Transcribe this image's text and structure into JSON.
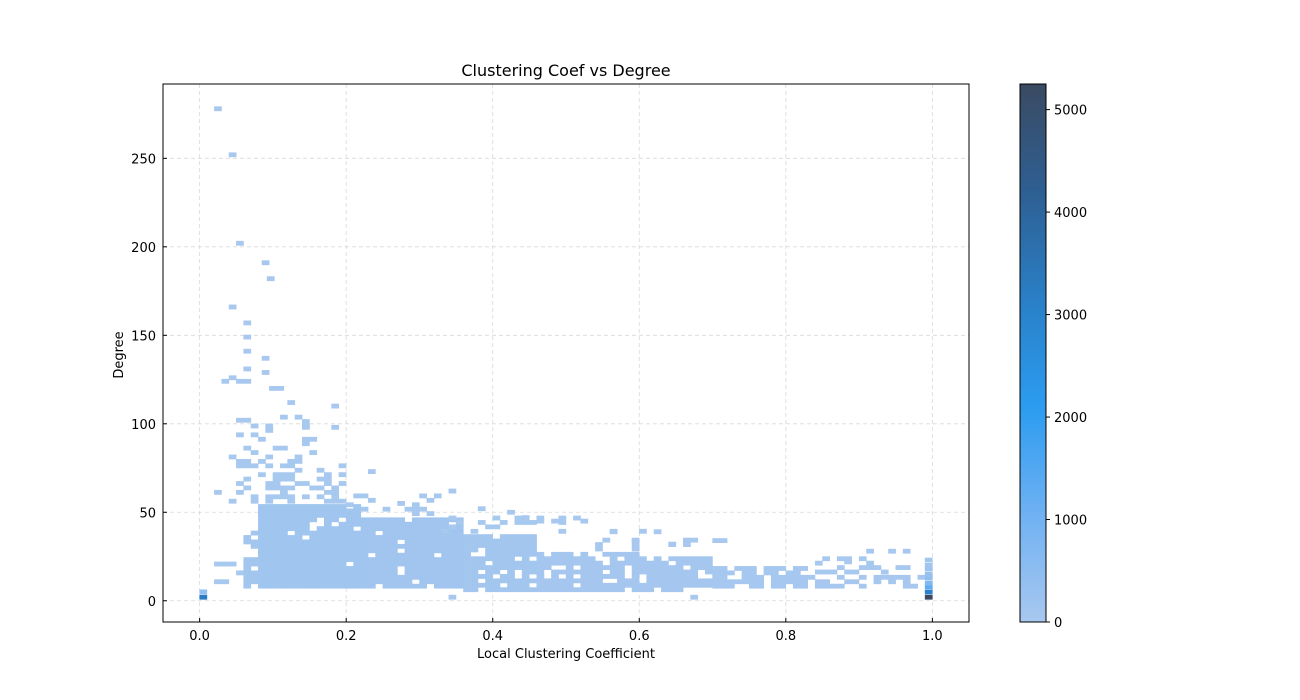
{
  "chart_data": {
    "type": "heatmap",
    "title": "Clustering Coef vs Degree",
    "xlabel": "Local Clustering Coefficient",
    "ylabel": "Degree",
    "xlim": [
      -0.05,
      1.05
    ],
    "ylim": [
      -12,
      292
    ],
    "x_ticks": [
      0.0,
      0.2,
      0.4,
      0.6,
      0.8,
      1.0
    ],
    "x_tick_labels": [
      "0.0",
      "0.2",
      "0.4",
      "0.6",
      "0.8",
      "1.0"
    ],
    "y_ticks": [
      0,
      50,
      100,
      150,
      200,
      250
    ],
    "y_tick_labels": [
      "0",
      "50",
      "100",
      "150",
      "200",
      "250"
    ],
    "grid": true,
    "colorbar": {
      "range": [
        0,
        5250
      ],
      "ticks": [
        0,
        1000,
        2000,
        3000,
        4000,
        5000
      ],
      "tick_labels": [
        "0",
        "1000",
        "2000",
        "3000",
        "4000",
        "5000"
      ],
      "colors": [
        "#a8c8ef",
        "#6fb1f2",
        "#2b9cf0",
        "#2a7fc6",
        "#2e5f92",
        "#3a4a62"
      ]
    },
    "bin_width_x": 0.01,
    "bin_height_y": 2.5,
    "regions": [
      {
        "x": [
          0.08,
          0.22
        ],
        "y": [
          7,
          55
        ],
        "value": 150,
        "coverage": 0.95
      },
      {
        "x": [
          0.06,
          0.08
        ],
        "y": [
          7,
          40
        ],
        "value": 100,
        "coverage": 0.75
      },
      {
        "x": [
          0.22,
          0.36
        ],
        "y": [
          7,
          48
        ],
        "value": 130,
        "coverage": 0.92
      },
      {
        "x": [
          0.36,
          0.46
        ],
        "y": [
          5,
          38
        ],
        "value": 90,
        "coverage": 0.85
      },
      {
        "x": [
          0.46,
          0.6
        ],
        "y": [
          5,
          28
        ],
        "value": 70,
        "coverage": 0.82
      },
      {
        "x": [
          0.6,
          0.7
        ],
        "y": [
          5,
          24
        ],
        "value": 50,
        "coverage": 0.78
      },
      {
        "x": [
          0.7,
          0.83
        ],
        "y": [
          7,
          20
        ],
        "value": 40,
        "coverage": 0.72
      },
      {
        "x": [
          0.83,
          0.99
        ],
        "y": [
          7,
          15
        ],
        "value": 25,
        "coverage": 0.5
      },
      {
        "x": [
          0.05,
          0.2
        ],
        "y": [
          55,
          80
        ],
        "value": 20,
        "coverage": 0.45
      },
      {
        "x": [
          0.04,
          0.16
        ],
        "y": [
          80,
          105
        ],
        "value": 10,
        "coverage": 0.22
      },
      {
        "x": [
          0.2,
          0.33
        ],
        "y": [
          48,
          60
        ],
        "value": 15,
        "coverage": 0.25
      },
      {
        "x": [
          0.33,
          0.52
        ],
        "y": [
          38,
          50
        ],
        "value": 12,
        "coverage": 0.2
      },
      {
        "x": [
          0.52,
          0.7
        ],
        "y": [
          28,
          40
        ],
        "value": 10,
        "coverage": 0.15
      },
      {
        "x": [
          0.83,
          0.99
        ],
        "y": [
          15,
          25
        ],
        "value": 10,
        "coverage": 0.28
      },
      {
        "x": [
          0.02,
          0.06
        ],
        "y": [
          7,
          30
        ],
        "value": 15,
        "coverage": 0.18
      },
      {
        "x": [
          0.02,
          0.05
        ],
        "y": [
          55,
          65
        ],
        "value": 8,
        "coverage": 0.3
      }
    ],
    "points": [
      [
        0.025,
        278,
        5
      ],
      [
        0.045,
        252,
        5
      ],
      [
        0.055,
        202,
        5
      ],
      [
        0.09,
        191,
        5
      ],
      [
        0.097,
        182,
        5
      ],
      [
        0.045,
        166,
        5
      ],
      [
        0.065,
        157,
        5
      ],
      [
        0.065,
        149,
        5
      ],
      [
        0.065,
        141,
        5
      ],
      [
        0.09,
        137,
        5
      ],
      [
        0.065,
        131,
        5
      ],
      [
        0.09,
        129,
        5
      ],
      [
        0.035,
        124,
        5
      ],
      [
        0.045,
        126,
        5
      ],
      [
        0.055,
        124,
        5
      ],
      [
        0.065,
        124,
        5
      ],
      [
        0.1,
        120,
        5
      ],
      [
        0.11,
        120,
        5
      ],
      [
        0.125,
        112,
        5
      ],
      [
        0.185,
        110,
        5
      ],
      [
        0.055,
        102,
        5
      ],
      [
        0.065,
        102,
        5
      ],
      [
        0.145,
        98,
        5
      ],
      [
        0.185,
        98,
        5
      ],
      [
        0.235,
        73,
        5
      ],
      [
        0.275,
        55,
        5
      ],
      [
        0.345,
        62,
        5
      ],
      [
        0.385,
        52,
        5
      ],
      [
        0.425,
        50,
        5
      ],
      [
        0.445,
        47,
        5
      ],
      [
        0.465,
        45,
        5
      ],
      [
        0.485,
        45,
        5
      ],
      [
        0.525,
        45,
        5
      ],
      [
        0.565,
        39,
        5
      ],
      [
        0.595,
        34,
        5
      ],
      [
        0.625,
        39,
        5
      ],
      [
        0.645,
        32,
        5
      ],
      [
        0.705,
        34,
        5
      ],
      [
        0.715,
        34,
        5
      ],
      [
        0.885,
        22,
        5
      ],
      [
        0.915,
        28,
        5
      ],
      [
        0.945,
        28,
        5
      ],
      [
        0.965,
        28,
        5
      ],
      [
        0.345,
        2,
        5
      ],
      [
        0.675,
        2,
        5
      ]
    ],
    "hot_bins": [
      [
        0.005,
        2,
        3200
      ],
      [
        0.005,
        5,
        400
      ],
      [
        0.995,
        2,
        5250
      ],
      [
        0.995,
        5,
        3000
      ],
      [
        0.995,
        8,
        1300
      ],
      [
        0.995,
        10,
        700
      ],
      [
        0.995,
        13,
        400
      ],
      [
        0.995,
        15,
        300
      ],
      [
        0.995,
        18,
        200
      ],
      [
        0.995,
        20,
        150
      ],
      [
        0.995,
        23,
        100
      ]
    ]
  }
}
